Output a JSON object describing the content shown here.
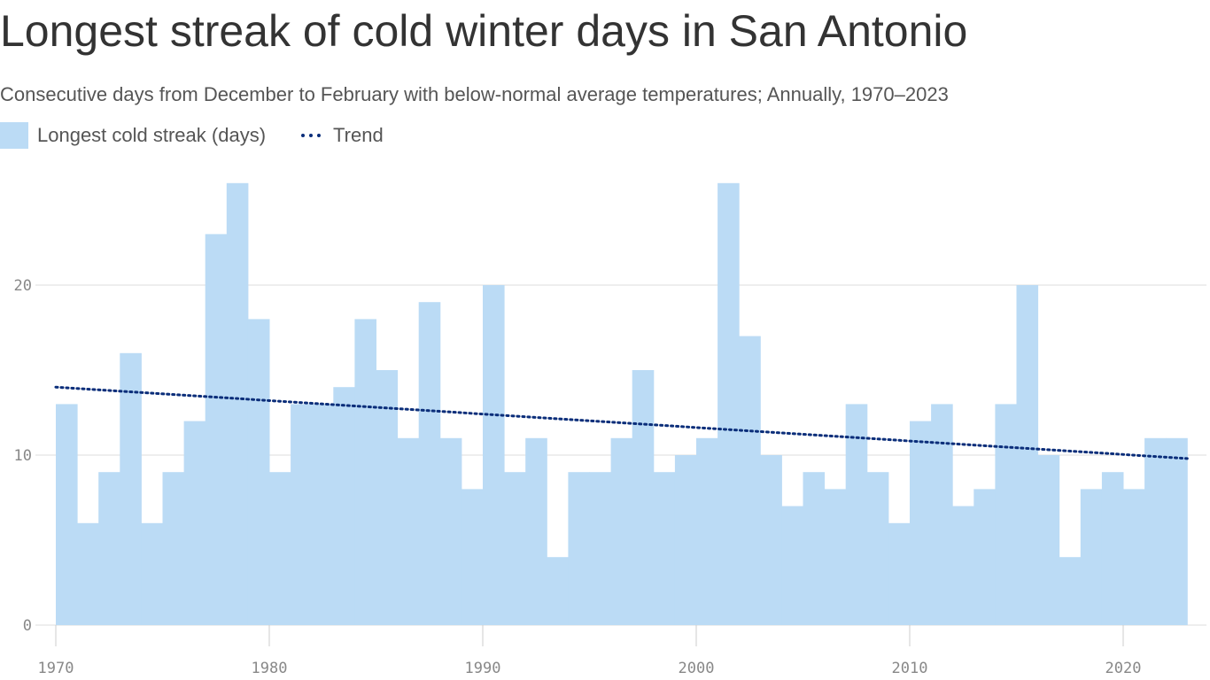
{
  "title": "Longest streak of cold winter days in San Antonio",
  "subtitle": "Consecutive days from December to February with below-normal average temperatures; Annually, 1970–2023",
  "legend": {
    "bars": "Longest cold streak (days)",
    "trend": "Trend"
  },
  "colors": {
    "bar": "#bbdbf5",
    "trend": "#0b2e7a",
    "grid": "#dddddd"
  },
  "chart_data": {
    "type": "bar",
    "title": "Longest streak of cold winter days in San Antonio",
    "x": [
      1970,
      1971,
      1972,
      1973,
      1974,
      1975,
      1976,
      1977,
      1978,
      1979,
      1980,
      1981,
      1982,
      1983,
      1984,
      1985,
      1986,
      1987,
      1988,
      1989,
      1990,
      1991,
      1992,
      1993,
      1994,
      1995,
      1996,
      1997,
      1998,
      1999,
      2000,
      2001,
      2002,
      2003,
      2004,
      2005,
      2006,
      2007,
      2008,
      2009,
      2010,
      2011,
      2012,
      2013,
      2014,
      2015,
      2016,
      2017,
      2018,
      2019,
      2020,
      2021,
      2022
    ],
    "series": [
      {
        "name": "Longest cold streak (days)",
        "values": [
          13,
          6,
          9,
          16,
          6,
          9,
          12,
          23,
          26,
          18,
          9,
          13,
          13,
          14,
          18,
          15,
          11,
          19,
          11,
          8,
          20,
          9,
          11,
          4,
          9,
          9,
          11,
          15,
          9,
          10,
          11,
          26,
          17,
          10,
          7,
          9,
          8,
          13,
          9,
          6,
          12,
          13,
          7,
          8,
          13,
          20,
          10,
          4,
          8,
          9,
          8,
          11,
          11
        ]
      }
    ],
    "trend": {
      "name": "Trend",
      "x": [
        1970,
        2023
      ],
      "values": [
        14.0,
        9.8
      ]
    },
    "xticks": [
      "1970",
      "1980",
      "1990",
      "2000",
      "2010",
      "2020"
    ],
    "yticks": [
      "0",
      "10",
      "20"
    ],
    "ylim": [
      0,
      26
    ],
    "xlim": [
      1970,
      2023
    ],
    "grid": true,
    "legend_position": "top-left"
  }
}
